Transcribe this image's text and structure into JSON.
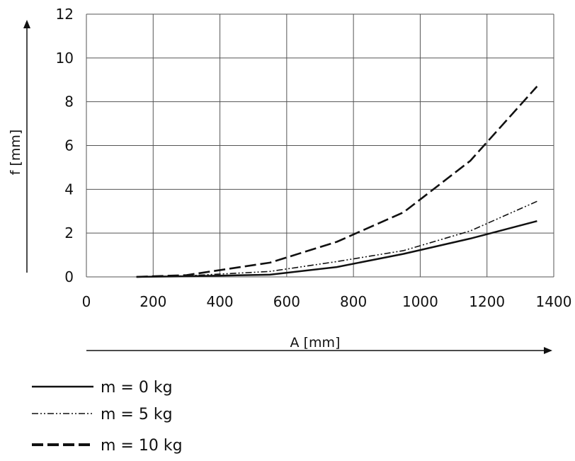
{
  "chart_data": {
    "type": "line",
    "xlabel": "A [mm]",
    "ylabel": "f [mm]",
    "xlim": [
      0,
      1400
    ],
    "ylim": [
      0,
      12
    ],
    "x_ticks": [
      "0",
      "200",
      "400",
      "600",
      "800",
      "1000",
      "1200",
      "1400"
    ],
    "y_ticks": [
      "0",
      "2",
      "4",
      "6",
      "8",
      "10",
      "12"
    ],
    "grid": true,
    "legend_position": "bottom-left",
    "series": [
      {
        "name": "m = 0 kg",
        "line_style": "solid",
        "x": [
          150,
          300,
          550,
          750,
          950,
          1150,
          1350
        ],
        "y": [
          0,
          0.03,
          0.1,
          0.45,
          1.05,
          1.75,
          2.55
        ]
      },
      {
        "name": "m = 5 kg",
        "line_style": "dash-dot-dot",
        "x": [
          150,
          300,
          550,
          750,
          950,
          1150,
          1350
        ],
        "y": [
          0,
          0.05,
          0.25,
          0.7,
          1.2,
          2.1,
          3.45
        ]
      },
      {
        "name": "m = 10 kg",
        "line_style": "dashed",
        "x": [
          150,
          300,
          550,
          750,
          950,
          1150,
          1350
        ],
        "y": [
          0,
          0.08,
          0.65,
          1.6,
          2.95,
          5.3,
          8.7
        ]
      }
    ]
  }
}
